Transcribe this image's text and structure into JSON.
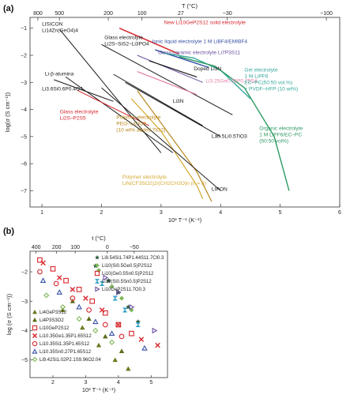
{
  "panels": [
    {
      "label": "(a)"
    },
    {
      "label": "(b)"
    }
  ],
  "colors": {
    "red": "#d7262c",
    "blue": "#3651a6",
    "purple": "#6a4fa0",
    "pink": "#e47fa6",
    "teal": "#35a89d",
    "brown": "#b8861b",
    "gold": "#d4a830",
    "green": "#2e9a63",
    "black": "#1a1a1a",
    "olive": "#6b8e23",
    "lightgreen": "#7fb85a"
  },
  "chart_data": [
    {
      "type": "line",
      "panel": "(a)",
      "title": "",
      "xlabel": "10³ T⁻¹ (K⁻¹)",
      "ylabel": "log(σ (S cm⁻¹))",
      "top_axis_label": "T (°C)",
      "xlim": [
        0.8,
        6.0
      ],
      "ylim": [
        -7.6,
        -0.6
      ],
      "xticks": [
        1,
        2,
        3,
        4,
        5,
        6
      ],
      "xtick_labels": [
        "1",
        "2",
        "3",
        "4",
        "5",
        "6"
      ],
      "yticks": [
        -7,
        -6,
        -5,
        -4,
        -3,
        -2,
        -1
      ],
      "ytick_labels": [
        "−7",
        "−6",
        "−5",
        "−4",
        "−3",
        "−2",
        "−1"
      ],
      "top_ticks": [
        800,
        500,
        200,
        100,
        27,
        -30,
        -100
      ],
      "top_tick_labels": [
        "800",
        "500",
        "200",
        "100",
        "27",
        "−30",
        "−100"
      ],
      "grid": false,
      "series": [
        {
          "name": "New Li10GeP2S12 solid electrolyte",
          "color": "red",
          "width": 1.6,
          "points": [
            [
              2.3,
              -1.0
            ],
            [
              3.3,
              -1.95
            ]
          ]
        },
        {
          "name": "Li14Zn(GeO4)4",
          "color": "black",
          "width": 1.0,
          "points": [
            [
              1.3,
              -1.05
            ],
            [
              3.0,
              -5.6
            ]
          ]
        },
        {
          "name": "Glass electrolyte Li2S–SiS2–Li3PO4",
          "color": "black",
          "width": 1.0,
          "points": [
            [
              2.0,
              -1.6
            ],
            [
              4.2,
              -4.2
            ]
          ]
        },
        {
          "name": "Ionic liquid electrolyte 1 M LiBF4/EMIBF4",
          "color": "blue",
          "width": 1.4,
          "points": [
            [
              2.9,
              -1.8
            ],
            [
              3.8,
              -2.45
            ]
          ]
        },
        {
          "name": "Glass-ceramic electrolyte Li7P3S11",
          "color": "purple",
          "width": 1.0,
          "points": [
            [
              2.6,
              -2.0
            ],
            [
              3.7,
              -3.0
            ]
          ]
        },
        {
          "name": "Doped Li3N",
          "color": "black",
          "width": 1.2,
          "points": [
            [
              2.8,
              -2.2
            ],
            [
              3.6,
              -2.8
            ]
          ]
        },
        {
          "name": "Li3.25Ge0.25P0.75S4",
          "color": "pink",
          "width": 1.2,
          "points": [
            [
              2.6,
              -2.6
            ],
            [
              3.6,
              -3.45
            ]
          ]
        },
        {
          "name": "Gel electrolyte",
          "color": "teal",
          "width": 1.4,
          "points": [
            [
              3.0,
              -1.9
            ],
            [
              3.55,
              -2.1
            ],
            [
              4.0,
              -2.55
            ],
            [
              4.5,
              -3.6
            ]
          ]
        },
        {
          "name": "Organic electrolyte",
          "color": "green",
          "width": 1.4,
          "points": [
            [
              3.3,
              -2.05
            ],
            [
              3.9,
              -2.4
            ],
            [
              4.4,
              -3.2
            ],
            [
              4.9,
              -5.0
            ],
            [
              5.15,
              -7.0
            ]
          ]
        },
        {
          "name": "Li-β-alumina",
          "color": "black",
          "width": 1.0,
          "points": [
            [
              1.2,
              -2.9
            ],
            [
              2.2,
              -3.7
            ]
          ]
        },
        {
          "name": "Li3.6Si0.6P0.4O4",
          "color": "black",
          "width": 1.0,
          "points": [
            [
              1.4,
              -2.8
            ],
            [
              3.2,
              -5.6
            ]
          ]
        },
        {
          "name": "Glass electrolyte Li2S–P2S5",
          "color": "red",
          "width": 1.0,
          "points": [
            [
              1.6,
              -3.3
            ],
            [
              2.8,
              -4.6
            ]
          ]
        },
        {
          "name": "Li3N",
          "color": "black",
          "width": 1.0,
          "points": [
            [
              2.4,
              -3.0
            ],
            [
              4.0,
              -5.0
            ]
          ]
        },
        {
          "name": "La0.5Li0.5TiO3",
          "color": "black",
          "width": 1.0,
          "points": [
            [
              2.2,
              -2.7
            ],
            [
              3.7,
              -4.6
            ]
          ]
        },
        {
          "name": "Polymer electrolyte PEO–LiClO4 (10 wt% added TiO2)",
          "color": "brown",
          "width": 1.2,
          "points": [
            [
              2.6,
              -3.3
            ],
            [
              3.0,
              -4.5
            ],
            [
              3.6,
              -6.3
            ],
            [
              3.85,
              -7.4
            ]
          ]
        },
        {
          "name": "Polymer electrolyte LiN(CF3SO2)2/(CH2CH2O)n (n = 8)",
          "color": "gold",
          "width": 1.2,
          "points": [
            [
              2.5,
              -3.6
            ],
            [
              3.0,
              -4.8
            ],
            [
              3.6,
              -6.8
            ],
            [
              3.7,
              -7.3
            ]
          ]
        },
        {
          "name": "LIPON",
          "color": "black",
          "width": 1.0,
          "points": [
            [
              2.0,
              -3.2
            ],
            [
              4.0,
              -7.0
            ]
          ]
        }
      ],
      "annotations": [
        {
          "lines": [
            "New Li10GeP2S12 solid electrolyte"
          ],
          "color": "red",
          "x": 3.05,
          "y": -0.85
        },
        {
          "lines": [
            "LISICON",
            "Li14Zn(GeO4)4"
          ],
          "color": "black",
          "x": 1.0,
          "y": -0.9
        },
        {
          "lines": [
            "Glass electrolyte",
            "Li2S–SiS2–Li3PO4"
          ],
          "color": "black",
          "x": 2.05,
          "y": -1.4
        },
        {
          "lines": [
            "Ionic liquid electrolyte 1 M LiBF4/EMIBF4"
          ],
          "color": "blue",
          "x": 2.85,
          "y": -1.55
        },
        {
          "lines": [
            "Glass-ceramic electrolyte Li7P3S11"
          ],
          "color": "purple",
          "x": 2.95,
          "y": -1.95
        },
        {
          "lines": [
            "Doped Li3N"
          ],
          "color": "black",
          "x": 3.55,
          "y": -2.55
        },
        {
          "lines": [
            "Li3.25Ge0.25P0.75S4"
          ],
          "color": "pink",
          "x": 3.75,
          "y": -3.0
        },
        {
          "lines": [
            "Gel electrolyte",
            "1 M LiPF6",
            "EC–PC(50:50 vol.%)",
            "+ PVDF–HFP (10 wt%)"
          ],
          "color": "teal",
          "x": 4.4,
          "y": -2.6
        },
        {
          "lines": [
            "Organic electrolyte",
            "1 M LiPF6/EC–PC",
            "(50:50 vol%)"
          ],
          "color": "green",
          "x": 4.65,
          "y": -4.75
        },
        {
          "lines": [
            "Li-β-alumina"
          ],
          "color": "black",
          "x": 1.05,
          "y": -2.75
        },
        {
          "lines": [
            "Li3.6Si0.6P0.4O4"
          ],
          "color": "black",
          "x": 1.0,
          "y": -3.3
        },
        {
          "lines": [
            "Glass electrolyte",
            "Li2S–P2S5"
          ],
          "color": "red",
          "x": 1.3,
          "y": -4.15
        },
        {
          "lines": [
            "Li3N"
          ],
          "color": "black",
          "x": 3.2,
          "y": -3.75
        },
        {
          "lines": [
            "La0.5Li0.5TiO3"
          ],
          "color": "black",
          "x": 3.85,
          "y": -5.05
        },
        {
          "lines": [
            "Polymer electrolyte",
            "PEO–LiClO4",
            "(10 wt% added TiO2)"
          ],
          "color": "brown",
          "x": 2.25,
          "y": -4.35
        },
        {
          "lines": [
            "Polymer electrolyte",
            "LiN(CF3SO2)2/(CH2CH2O)n (n = 8)"
          ],
          "color": "gold",
          "x": 2.35,
          "y": -6.55
        },
        {
          "lines": [
            "LIPON"
          ],
          "color": "black",
          "x": 3.85,
          "y": -7.0
        }
      ]
    },
    {
      "type": "scatter",
      "panel": "(b)",
      "title": "",
      "xlabel": "10³ T⁻¹ (K⁻¹)",
      "ylabel": "log (σ (S cm⁻¹))",
      "top_axis_label": "t (°C)",
      "xlim": [
        1.3,
        5.5
      ],
      "ylim": [
        -5.6,
        -1.3
      ],
      "xticks": [
        2,
        3,
        4,
        5
      ],
      "xtick_labels": [
        "2",
        "3",
        "4",
        "5"
      ],
      "yticks": [
        -5,
        -4,
        -3,
        -2
      ],
      "ytick_labels": [
        "−5",
        "−4",
        "−3",
        "−2"
      ],
      "top_ticks": [
        400,
        200,
        100,
        0,
        -50
      ],
      "top_tick_labels": [
        "400",
        "200",
        "100",
        "0",
        "−50"
      ],
      "grid": false,
      "legend_top": [
        {
          "label": "Li9.54Si1.74P1.44S11.7Cl0.3",
          "marker": "star",
          "color": "#2a5a3a"
        },
        {
          "label": "Li10(Si0.5Ge0.5)P2S12",
          "marker": "diamond",
          "color": "#7fb85a"
        },
        {
          "label": "Li10(Ge0.5Sn0.5)P2S12",
          "marker": "square-open",
          "color": "#d7262c"
        },
        {
          "label": "Li10(Si0.5Sn0.5)P2S12",
          "marker": "hourglass",
          "color": "#35a0c8"
        },
        {
          "label": "Li10GeP2S11.7O0.3",
          "marker": "triangle-open-right",
          "color": "#6a4fa0"
        }
      ],
      "legend_bottom": [
        {
          "label": "Li4GeP3S12",
          "marker": "triangle",
          "color": "#6b7a1e"
        },
        {
          "label": "Li4P3S3O2",
          "marker": "triangle",
          "color": "#5d6b1a"
        },
        {
          "label": "Li10GeP2S12",
          "marker": "square-open",
          "color": "#d7262c"
        },
        {
          "label": "Li10.35Ge1.35P1.65S12",
          "marker": "x",
          "color": "#d7262c"
        },
        {
          "label": "Li10.35Si1.35P1.65S12",
          "marker": "circle-open",
          "color": "#d7262c"
        },
        {
          "label": "Li10.35Sn0.27P1.65S12",
          "marker": "triangle-open",
          "color": "#3651a6"
        },
        {
          "label": "Li9.42Si1.02P2.1S9.96O2.04",
          "marker": "diamond-open",
          "color": "#7fb85a"
        }
      ],
      "points": [
        {
          "marker": "star",
          "color": "#2a5a3a",
          "xy": [
            [
              3.3,
              -1.8
            ],
            [
              3.7,
              -2.3
            ],
            [
              4.0,
              -2.7
            ],
            [
              4.3,
              -3.2
            ],
            [
              4.6,
              -3.7
            ]
          ]
        },
        {
          "marker": "diamond",
          "color": "#7fb85a",
          "xy": [
            [
              3.4,
              -1.95
            ],
            [
              3.8,
              -2.5
            ],
            [
              4.1,
              -2.9
            ],
            [
              4.4,
              -3.3
            ]
          ]
        },
        {
          "marker": "square-open",
          "color": "#d7262c",
          "xy": [
            [
              1.6,
              -1.6
            ],
            [
              2.0,
              -1.9
            ],
            [
              2.4,
              -2.3
            ],
            [
              2.8,
              -2.6
            ],
            [
              3.2,
              -3.0
            ],
            [
              3.6,
              -3.4
            ],
            [
              4.0,
              -3.8
            ],
            [
              4.4,
              -4.1
            ]
          ]
        },
        {
          "marker": "hourglass",
          "color": "#35a0c8",
          "xy": [
            [
              3.5,
              -2.4
            ],
            [
              3.9,
              -2.9
            ],
            [
              4.2,
              -3.3
            ],
            [
              4.6,
              -3.8
            ]
          ]
        },
        {
          "marker": "triangle-open-right",
          "color": "#6a4fa0",
          "xy": [
            [
              3.6,
              -2.2
            ],
            [
              4.0,
              -2.7
            ],
            [
              4.4,
              -3.2
            ],
            [
              5.1,
              -4.0
            ]
          ]
        },
        {
          "marker": "triangle",
          "color": "#6b7a1e",
          "xy": [
            [
              2.3,
              -3.3
            ],
            [
              2.9,
              -3.9
            ],
            [
              3.4,
              -4.5
            ],
            [
              3.9,
              -5.0
            ],
            [
              4.3,
              -5.3
            ]
          ]
        },
        {
          "marker": "triangle",
          "color": "#5d6b1a",
          "xy": [
            [
              2.6,
              -3.0
            ],
            [
              3.1,
              -3.6
            ],
            [
              3.6,
              -4.2
            ],
            [
              4.1,
              -4.7
            ]
          ]
        },
        {
          "marker": "x",
          "color": "#d7262c",
          "xy": [
            [
              1.7,
              -1.7
            ],
            [
              2.2,
              -2.2
            ],
            [
              2.6,
              -2.6
            ],
            [
              3.0,
              -2.9
            ],
            [
              3.5,
              -3.3
            ],
            [
              4.0,
              -3.8
            ],
            [
              4.7,
              -4.3
            ],
            [
              5.2,
              -4.5
            ]
          ]
        },
        {
          "marker": "circle-open",
          "color": "#d7262c",
          "xy": [
            [
              1.6,
              -2.0
            ],
            [
              2.1,
              -2.4
            ],
            [
              2.6,
              -2.9
            ],
            [
              3.1,
              -3.3
            ],
            [
              3.6,
              -3.8
            ],
            [
              4.1,
              -4.2
            ]
          ]
        },
        {
          "marker": "triangle-open",
          "color": "#3651a6",
          "xy": [
            [
              1.7,
              -2.3
            ],
            [
              2.2,
              -2.7
            ],
            [
              2.8,
              -3.2
            ],
            [
              3.3,
              -3.7
            ],
            [
              3.8,
              -4.1
            ],
            [
              4.8,
              -4.6
            ]
          ]
        },
        {
          "marker": "diamond-open",
          "color": "#7fb85a",
          "xy": [
            [
              1.8,
              -2.8
            ],
            [
              2.3,
              -3.2
            ],
            [
              2.8,
              -3.6
            ],
            [
              3.3,
              -4.0
            ],
            [
              3.8,
              -4.4
            ]
          ]
        }
      ]
    }
  ]
}
